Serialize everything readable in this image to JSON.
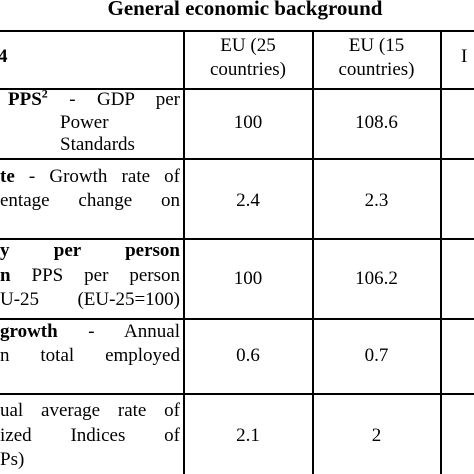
{
  "title": "General economic background",
  "header": [
    "4",
    [
      "EU (25",
      "countries)"
    ],
    [
      "EU (15",
      "countries)"
    ],
    "I"
  ],
  "rows": [
    {
      "label": [
        {
          "bold": "PPS",
          "sup": "2",
          "text": "- GDP per"
        },
        {
          "text": "Power Standards"
        }
      ],
      "eu25": 100,
      "eu15": 108.6
    },
    {
      "label": [
        {
          "bold": "te",
          "text": "- Growth rate of"
        },
        {
          "text": "entage change on"
        }
      ],
      "eu25": 2.4,
      "eu15": 2.3
    },
    {
      "label": [
        {
          "bold": "y per person"
        },
        {
          "bold": "n",
          "text": "PPS per person"
        },
        {
          "text": "U-25 (EU-25=100)"
        }
      ],
      "eu25": 100,
      "eu15": 106.2
    },
    {
      "label": [
        {
          "bold": "growth",
          "text": "- Annual"
        },
        {
          "text": "n total employed"
        }
      ],
      "eu25": 0.6,
      "eu15": 0.7
    },
    {
      "label": [
        {
          "text": "ual average rate of"
        },
        {
          "text": "ized Indices of"
        },
        {
          "text": "Ps)"
        }
      ],
      "eu25": 2.1,
      "eu15": 2
    }
  ]
}
